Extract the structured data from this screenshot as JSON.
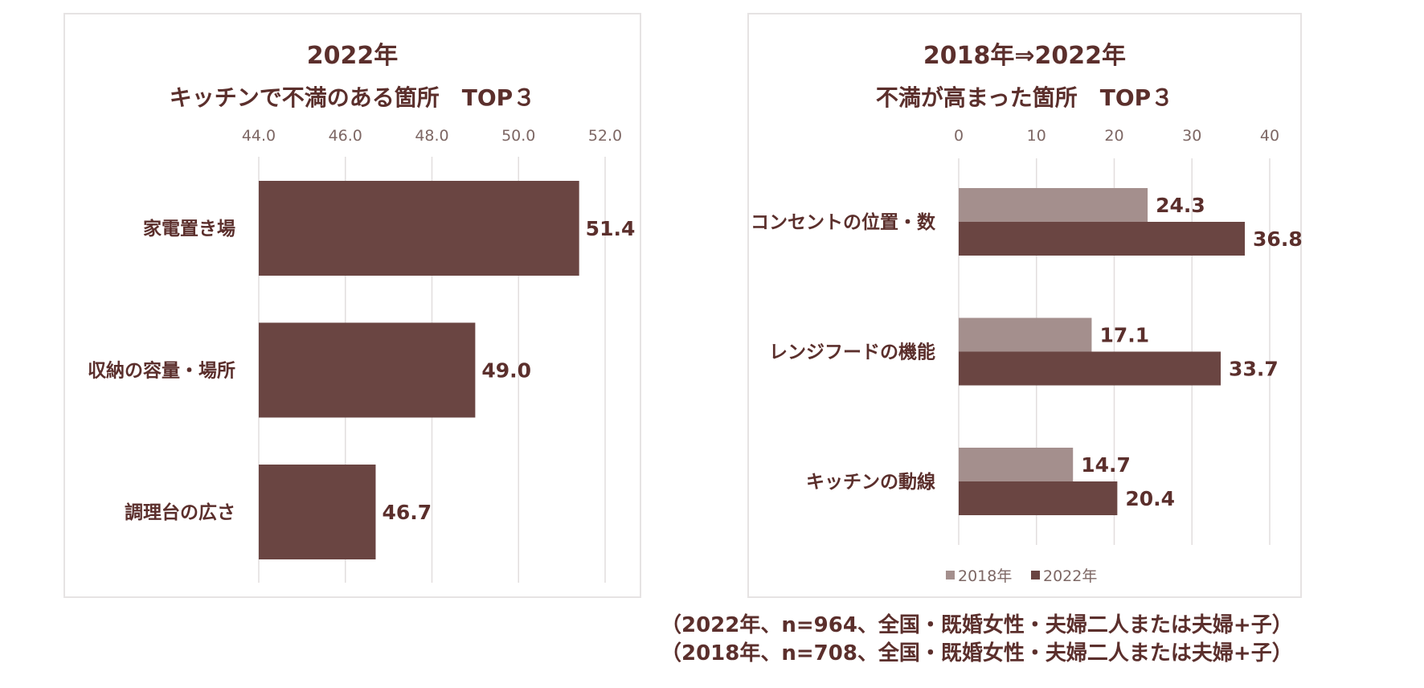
{
  "colors": {
    "bar_2022": "#6a4542",
    "bar_2018": "#a48f8d",
    "text": "#5b2f2c",
    "tick": "#7d6764",
    "grid": "#e2dede"
  },
  "chart_data": [
    {
      "type": "bar",
      "orientation": "horizontal",
      "title": "2022年",
      "subtitle": "キッチンで不満のある箇所　TOP３",
      "categories": [
        "家電置き場",
        "収納の容量・場所",
        "調理台の広さ"
      ],
      "values": [
        51.4,
        49.0,
        46.7
      ],
      "value_labels": [
        "51.4",
        "49.0",
        "46.7"
      ],
      "xlim": [
        44.0,
        52.0
      ],
      "xticks": [
        "44.0",
        "46.0",
        "48.0",
        "50.0",
        "52.0"
      ],
      "xtick_values": [
        44,
        46,
        48,
        50,
        52
      ],
      "axis_position": "top",
      "grid": true,
      "xlabel": "",
      "ylabel": ""
    },
    {
      "type": "bar",
      "orientation": "horizontal",
      "title": "2018年⇒2022年",
      "subtitle": "不満が高まった箇所　TOP３",
      "categories": [
        "コンセントの位置・数",
        "レンジフードの機能",
        "キッチンの動線"
      ],
      "series": [
        {
          "name": "2018年",
          "values": [
            24.3,
            17.1,
            14.7
          ],
          "labels": [
            "24.3",
            "17.1",
            "14.7"
          ]
        },
        {
          "name": "2022年",
          "values": [
            36.8,
            33.7,
            20.4
          ],
          "labels": [
            "36.8",
            "33.7",
            "20.4"
          ]
        }
      ],
      "xlim": [
        0,
        40
      ],
      "xticks": [
        "0",
        "10",
        "20",
        "30",
        "40"
      ],
      "xtick_values": [
        0,
        10,
        20,
        30,
        40
      ],
      "axis_position": "top",
      "grid": true,
      "legend": "bottom",
      "xlabel": "",
      "ylabel": ""
    }
  ],
  "footnotes": [
    "（2022年、n=964、全国・既婚女性・夫婦二人または夫婦+子）",
    "（2018年、n=708、全国・既婚女性・夫婦二人または夫婦+子）"
  ]
}
